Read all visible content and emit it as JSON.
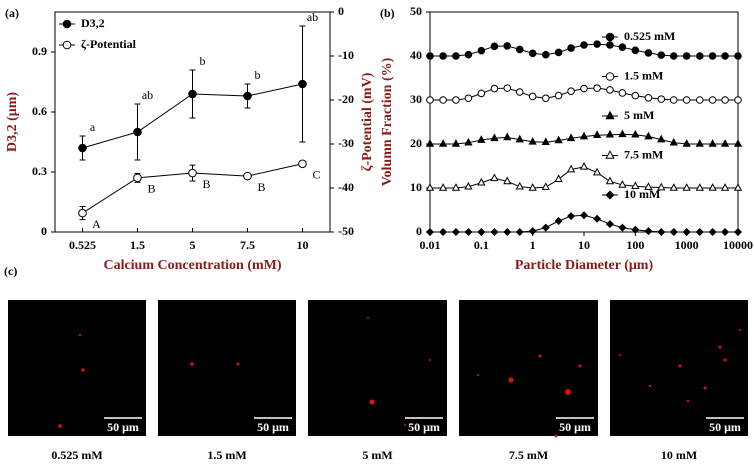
{
  "chart_data": [
    {
      "type": "line",
      "panel_label": "(a)",
      "x_label": "Calcium Concentration (mM)",
      "y_label": "D3,2 (μm)",
      "y2_label": "ζ-Potential (mV)",
      "categories": [
        "0.525",
        "1.5",
        "5",
        "7.5",
        "10"
      ],
      "ylim": [
        0,
        1.1
      ],
      "yticks": [
        0,
        0.3,
        0.6,
        0.9
      ],
      "y2lim": [
        -50,
        0
      ],
      "y2ticks": [
        0,
        -10,
        -20,
        -30,
        -40,
        -50
      ],
      "legend": "top-left",
      "series": [
        {
          "name": "D3,2",
          "color": "#000000",
          "marker": "circle",
          "filled": true,
          "values": [
            0.42,
            0.5,
            0.69,
            0.68,
            0.74
          ],
          "errors": [
            0.06,
            0.14,
            0.12,
            0.06,
            0.29
          ],
          "labels": [
            "a",
            "ab",
            "b",
            "b",
            "ab"
          ]
        },
        {
          "name": "ζ-Potential",
          "color": "#000000",
          "marker": "circle",
          "filled": false,
          "axis": "y2",
          "values": [
            -45.7,
            -37.7,
            -36.6,
            -37.3,
            -34.5
          ],
          "errors": [
            1.5,
            1,
            1.8,
            0.5,
            0.5
          ],
          "labels": [
            "A",
            "B",
            "B",
            "B",
            "C"
          ]
        }
      ]
    },
    {
      "type": "line",
      "panel_label": "(b)",
      "x_label": "Particle Diameter (μm)",
      "y_label": "Volumn Fraction (%)",
      "xlog": true,
      "xlim": [
        0.01,
        10000
      ],
      "xticks": [
        0.01,
        0.1,
        1,
        10,
        100,
        1000,
        10000
      ],
      "ylim": [
        0,
        50
      ],
      "yticks": [
        0,
        10,
        20,
        30,
        40,
        50
      ],
      "legend": "right",
      "x": [
        0.01,
        0.018,
        0.032,
        0.056,
        0.1,
        0.18,
        0.32,
        0.56,
        1,
        1.8,
        3.2,
        5.6,
        10,
        18,
        32,
        56,
        100,
        180,
        320,
        560,
        1000,
        1800,
        3200,
        5600,
        10000
      ],
      "series": [
        {
          "name": "0.525 mM",
          "color": "#000000",
          "marker": "circle",
          "filled": true,
          "values": [
            40,
            40,
            40,
            40.3,
            41.2,
            42.2,
            42.3,
            41.5,
            40.6,
            40.3,
            40.8,
            41.8,
            42.5,
            42.7,
            42.5,
            42,
            41.3,
            40.7,
            40.2,
            40,
            40,
            40,
            40,
            40,
            40
          ]
        },
        {
          "name": "1.5 mM",
          "color": "#000000",
          "marker": "circle",
          "filled": false,
          "values": [
            30,
            30,
            30,
            30.4,
            31.5,
            32.6,
            32.7,
            31.8,
            30.8,
            30.4,
            31,
            32,
            32.6,
            32.7,
            32.3,
            31.6,
            31,
            30.5,
            30.2,
            30,
            30,
            30,
            30,
            30,
            30
          ]
        },
        {
          "name": "5 mM",
          "color": "#000000",
          "marker": "triangle",
          "filled": true,
          "values": [
            20,
            20,
            20,
            20.3,
            20.9,
            21.3,
            21.5,
            21,
            20.5,
            20.4,
            20.8,
            21.3,
            21.7,
            22,
            22.1,
            22.2,
            22.1,
            21.7,
            21,
            20.3,
            20,
            20,
            20,
            20,
            20
          ]
        },
        {
          "name": "7.5 mM",
          "color": "#000000",
          "marker": "triangle",
          "filled": false,
          "values": [
            10,
            10,
            10,
            10.3,
            11.2,
            12.2,
            11.5,
            10.3,
            10,
            10.2,
            12,
            14.2,
            14.8,
            13.5,
            11.5,
            10.7,
            10.4,
            10.2,
            10.1,
            10,
            10,
            10,
            10,
            10,
            10
          ]
        },
        {
          "name": "10 mM",
          "color": "#000000",
          "marker": "diamond",
          "filled": true,
          "values": [
            0,
            0,
            0,
            0,
            0,
            0,
            0,
            0,
            0.2,
            1,
            2.5,
            3.6,
            3.8,
            3,
            1.8,
            1,
            0.5,
            0.2,
            0,
            0,
            0,
            0,
            0,
            0,
            0
          ]
        }
      ]
    }
  ],
  "images": {
    "panel_label": "(c)",
    "panels": [
      {
        "scale": "50 μm",
        "caption": "0.525 mM"
      },
      {
        "scale": "50 μm",
        "caption": "1.5 mM"
      },
      {
        "scale": "50 μm",
        "caption": "5 mM"
      },
      {
        "scale": "50 μm",
        "caption": "7.5 mM"
      },
      {
        "scale": "50 μm",
        "caption": "10 mM"
      }
    ]
  }
}
